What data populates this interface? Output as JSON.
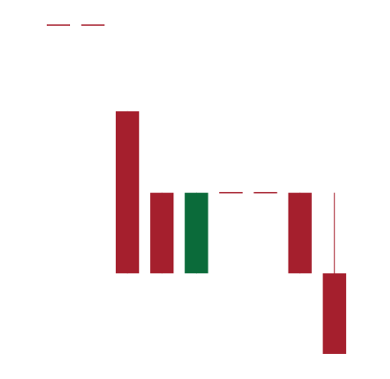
{
  "chart_data": {
    "type": "candlestick",
    "title": "",
    "xlabel": "",
    "ylabel": "",
    "grid": false,
    "legend": "none",
    "ylim": [
      0,
      100
    ],
    "colors": {
      "up": "#0b6b3a",
      "down": "#a51f2d"
    },
    "candles": [
      {
        "open": 100,
        "high": 100,
        "low": 100,
        "close": 100
      },
      {
        "open": 100,
        "high": 100,
        "low": 100,
        "close": 100
      },
      {
        "open": 73.8,
        "high": 73.8,
        "low": 24.5,
        "close": 24.5
      },
      {
        "open": 49.0,
        "high": 49.0,
        "low": 24.5,
        "close": 24.5
      },
      {
        "open": 24.5,
        "high": 49.0,
        "low": 24.5,
        "close": 49.0
      },
      {
        "open": 49.0,
        "high": 49.0,
        "low": 49.0,
        "close": 49.0
      },
      {
        "open": 49.0,
        "high": 49.0,
        "low": 49.0,
        "close": 49.0
      },
      {
        "open": 49.0,
        "high": 49.0,
        "low": 24.5,
        "close": 24.5
      },
      {
        "open": 24.5,
        "high": 49.0,
        "low": 0,
        "close": 0
      }
    ]
  }
}
